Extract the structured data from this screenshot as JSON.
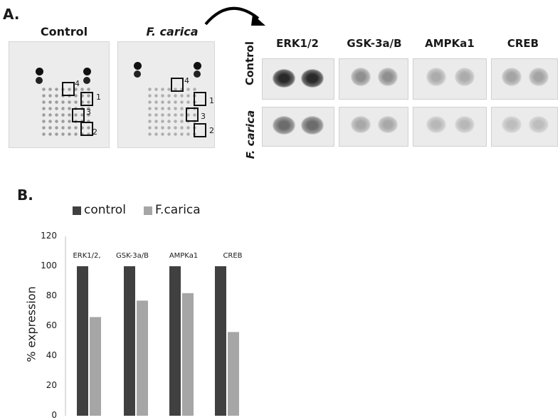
{
  "panel_a": {
    "label": "A.",
    "array_titles": [
      "Control",
      "F. carica"
    ],
    "marker_numbers": [
      "1",
      "2",
      "3",
      "4"
    ],
    "blot_proteins": [
      "ERK1/2",
      "GSK-3a/B",
      "AMPKa1",
      "CREB"
    ],
    "blot_rows": [
      "Control",
      "F. carica"
    ]
  },
  "panel_b": {
    "label": "B."
  },
  "colors": {
    "control": "#404040",
    "fcarica": "#a6a6a6"
  },
  "chart_data": {
    "type": "bar",
    "categories": [
      "ERK1/2,",
      "GSK-3a/B",
      "AMPKa1",
      "CREB"
    ],
    "series": [
      {
        "name": "control",
        "values": [
          100,
          100,
          100,
          100
        ]
      },
      {
        "name": "F.carica",
        "values": [
          66,
          77,
          82,
          56
        ]
      }
    ],
    "ylabel": "% expression",
    "ylim": [
      0,
      120
    ],
    "yticks": [
      "0",
      "20",
      "40",
      "60",
      "80",
      "100",
      "120"
    ],
    "legend": "top",
    "grid": false
  }
}
